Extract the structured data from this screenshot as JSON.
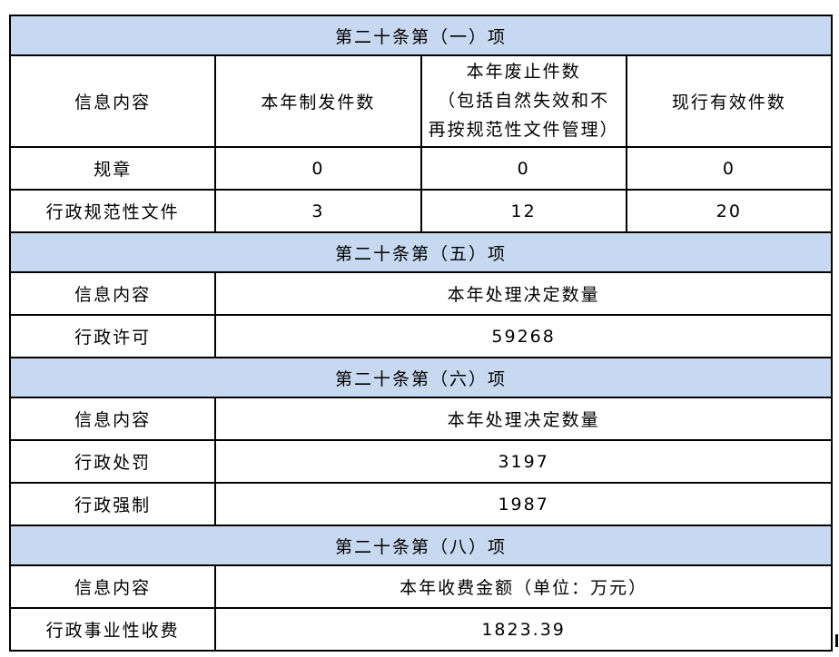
{
  "colors": {
    "section_header_bg": "#c7d9f0",
    "border": "#000000",
    "text": "#000000",
    "page_bg": "#ffffff"
  },
  "sections": [
    {
      "title": "第二十条第（一）项",
      "header_row": [
        "信息内容",
        "本年制发件数",
        "本年废止件数\n（包括自然失效和不\n再按规范性文件管理）",
        "现行有效件数"
      ],
      "rows": [
        {
          "label": "规章",
          "values": [
            "0",
            "0",
            "0"
          ]
        },
        {
          "label": "行政规范性文件",
          "values": [
            "3",
            "12",
            "20"
          ]
        }
      ]
    },
    {
      "title": "第二十条第（五）项",
      "header_row": [
        "信息内容",
        "本年处理决定数量"
      ],
      "rows": [
        {
          "label": "行政许可",
          "values": [
            "59268"
          ]
        }
      ]
    },
    {
      "title": "第二十条第（六）项",
      "header_row": [
        "信息内容",
        "本年处理决定数量"
      ],
      "rows": [
        {
          "label": "行政处罚",
          "values": [
            "3197"
          ]
        },
        {
          "label": "行政强制",
          "values": [
            "1987"
          ]
        }
      ]
    },
    {
      "title": "第二十条第（八）项",
      "header_row": [
        "信息内容",
        "本年收费金额（单位：万元）"
      ],
      "rows": [
        {
          "label": "行政事业性收费",
          "values": [
            "1823.39"
          ]
        }
      ]
    }
  ]
}
